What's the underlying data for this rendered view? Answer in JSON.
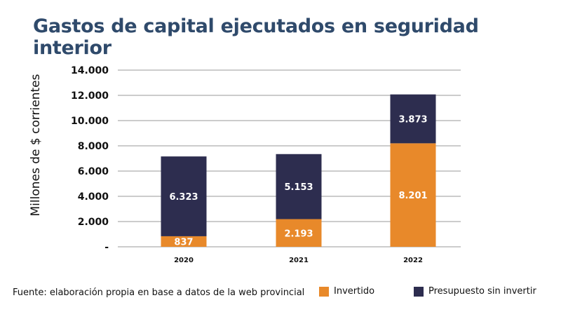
{
  "title": "Gastos de capital ejecutados en seguridad interior",
  "source": "Fuente: elaboración propia en base a datos de la web provincial",
  "colors": {
    "invertido": "#e8892a",
    "sin_invertir": "#2d2d4f",
    "title": "#2f4a6b",
    "grid": "#999999"
  },
  "chart_data": {
    "type": "bar",
    "stacked": true,
    "categories": [
      "2020",
      "2021",
      "2022"
    ],
    "series": [
      {
        "name": "Invertido",
        "values": [
          837,
          2193,
          8201
        ],
        "labels": [
          "837",
          "2.193",
          "8.201"
        ]
      },
      {
        "name": "Presupuesto sin invertir",
        "values": [
          6323,
          5153,
          3873
        ],
        "labels": [
          "6.323",
          "5.153",
          "3.873"
        ]
      }
    ],
    "ylabel": "Millones de $ corrientes",
    "xlabel": "",
    "ylim": [
      0,
      14000
    ],
    "yticks": [
      0,
      2000,
      4000,
      6000,
      8000,
      10000,
      12000,
      14000
    ],
    "ytick_labels": [
      "-",
      "2.000",
      "4.000",
      "6.000",
      "8.000",
      "10.000",
      "12.000",
      "14.000"
    ],
    "grid": true,
    "legend": "bottom"
  }
}
